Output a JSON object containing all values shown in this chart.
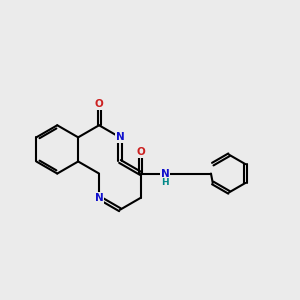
{
  "bg_color": "#ebebeb",
  "bond_color": "#000000",
  "bond_width": 1.5,
  "atom_colors": {
    "N": "#1010cc",
    "O": "#cc2020",
    "NH": "#008888",
    "C": "#000000"
  },
  "font_size": 7.5,
  "fig_size": [
    3.0,
    3.0
  ],
  "dpi": 100,
  "xlim": [
    0,
    10
  ],
  "ylim": [
    2.5,
    8.5
  ]
}
